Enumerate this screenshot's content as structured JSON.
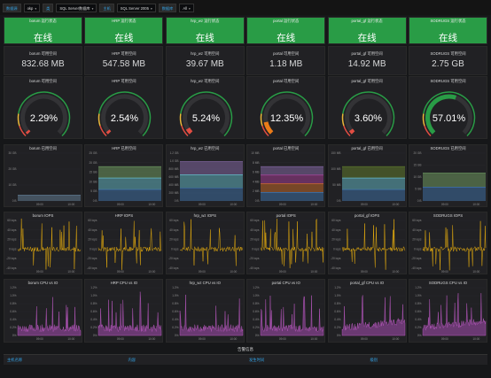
{
  "topbar": {
    "vars": [
      {
        "label": "数据源",
        "value": "okp"
      },
      {
        "label": "类",
        "value": "SQL Server数据库"
      },
      {
        "label": "主机",
        "value": "SQL Server 2005"
      },
      {
        "label": "数据库",
        "value": "All"
      }
    ]
  },
  "databases": [
    "borum",
    "HRP",
    "hrp_wz",
    "portal",
    "portal_gf",
    "SODRUGS"
  ],
  "status": {
    "title_suffix": "运行状态",
    "value": "在线"
  },
  "memory": {
    "title_suffix": "可用空间",
    "values": [
      "832.68 MB",
      "547.58 MB",
      "39.67 MB",
      "1.18 MB",
      "14.92 MB",
      "2.75 GB"
    ]
  },
  "gauge": {
    "title_suffix": "可用空间",
    "values": [
      "2.29%",
      "2.54%",
      "5.24%",
      "12.35%",
      "3.60%",
      "57.01%"
    ],
    "fractions": [
      0.0229,
      0.0254,
      0.0524,
      0.1235,
      0.036,
      0.5701
    ],
    "colors": [
      "#e24d42",
      "#e24d42",
      "#e24d42",
      "#eb7b18",
      "#e24d42",
      "#299c46"
    ]
  },
  "usage_charts": {
    "title_suffix": "已用空间",
    "y_ticks": [
      [
        "30 GB",
        "20 GB",
        "10 GB",
        "0 B"
      ],
      [
        "25 GB",
        "20 GB",
        "15 GB",
        "10 GB",
        "5 GB",
        "0 B"
      ],
      [
        "1.2 GB",
        "1.0 GB",
        "800 MB",
        "600 MB",
        "400 MB",
        "200 MB",
        "0 B"
      ],
      [
        "10 MB",
        "8 MB",
        "6 MB",
        "4 MB",
        "2 MB",
        "0 B"
      ],
      [
        "150 MB",
        "100 MB",
        "50 MB",
        "0 B"
      ],
      [
        "20 GB",
        "15 GB",
        "10 GB",
        "5 GB",
        "0 B"
      ]
    ],
    "x_ticks": [
      "09:00",
      "10:00"
    ]
  },
  "iops_charts": {
    "title_suffix": "IOPS",
    "y_ticks": [
      "60 iops",
      "40 iops",
      "20 iops",
      "0 iops",
      "-20 iops",
      "-40 iops"
    ],
    "x_ticks": [
      "09:00",
      "10:00"
    ]
  },
  "cpu_charts": {
    "title_suffix": "CPU vs IO",
    "y_ticks": [
      "1.2%",
      "1.0%",
      "0.8%",
      "0.6%",
      "0.4%",
      "0.2%",
      "0%"
    ],
    "x_ticks": [
      "09:00",
      "10:00"
    ]
  },
  "footer": {
    "row_title": "告警信息",
    "columns": [
      "主机名称",
      "内容",
      "发生时间",
      "级别"
    ]
  },
  "colors": {
    "online": "#299c46",
    "accent": "#33a2e5",
    "iops_line": "#e5ac0e",
    "cpu_area": "#a84fb3"
  }
}
